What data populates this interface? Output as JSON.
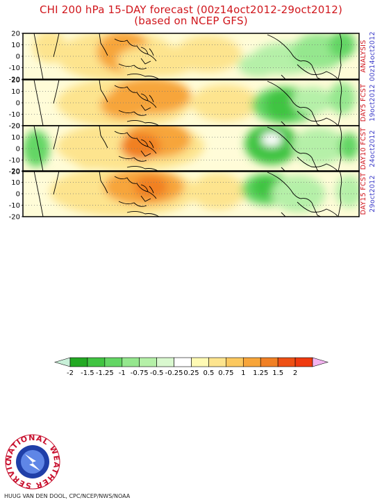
{
  "title_line1": "CHI 200 hPa 15-DAY forecast (00z14oct2012-29oct2012)",
  "title_line2": "(based on NCEP GFS)",
  "panels": [
    {
      "label_top": "ANALYSIS",
      "label_bottom": "00z14oct2012",
      "label_top_color": "#d0161c",
      "label_bottom_color": "#3b3bc8"
    },
    {
      "label_top": "DAY5 FCST",
      "label_bottom": "19oct2012",
      "label_top_color": "#d0161c",
      "label_bottom_color": "#3b3bc8"
    },
    {
      "label_top": "DAY10 FCST",
      "label_bottom": "24oct2012",
      "label_top_color": "#d0161c",
      "label_bottom_color": "#3b3bc8"
    },
    {
      "label_top": "DAY15 FCST",
      "label_bottom": "29oct2012",
      "label_top_color": "#d0161c",
      "label_bottom_color": "#3b3bc8"
    }
  ],
  "logo_text": "NATIONAL WEATHER SERVICE",
  "credit": "HUUG VAN DEN DOOL, CPC/NCEP/NWS/NOAA",
  "chart_data": {
    "type": "heatmap",
    "variable": "CHI 200 hPa",
    "y_ticks": [
      20,
      10,
      0,
      -10,
      -20
    ],
    "ylim": [
      -20,
      20
    ],
    "colorbar": {
      "ticks": [
        "-2",
        "-1.5",
        "-1.25",
        "-1",
        "-0.75",
        "-0.5",
        "-0.25",
        "0.25",
        "0.5",
        "0.75",
        "1",
        "1.25",
        "1.5",
        "2"
      ],
      "colors": [
        "#c8f0d8",
        "#23a923",
        "#41c442",
        "#64d665",
        "#95e78e",
        "#b5f0a8",
        "#d9f8cf",
        "#ffffff",
        "#fffab4",
        "#fde48e",
        "#fbc85f",
        "#f7a53a",
        "#f18024",
        "#ee5014",
        "#ef3a0f",
        "#f3b4f0"
      ]
    },
    "panels": [
      "ANALYSIS",
      "DAY5 FCST",
      "DAY10 FCST",
      "DAY15 FCST"
    ]
  }
}
